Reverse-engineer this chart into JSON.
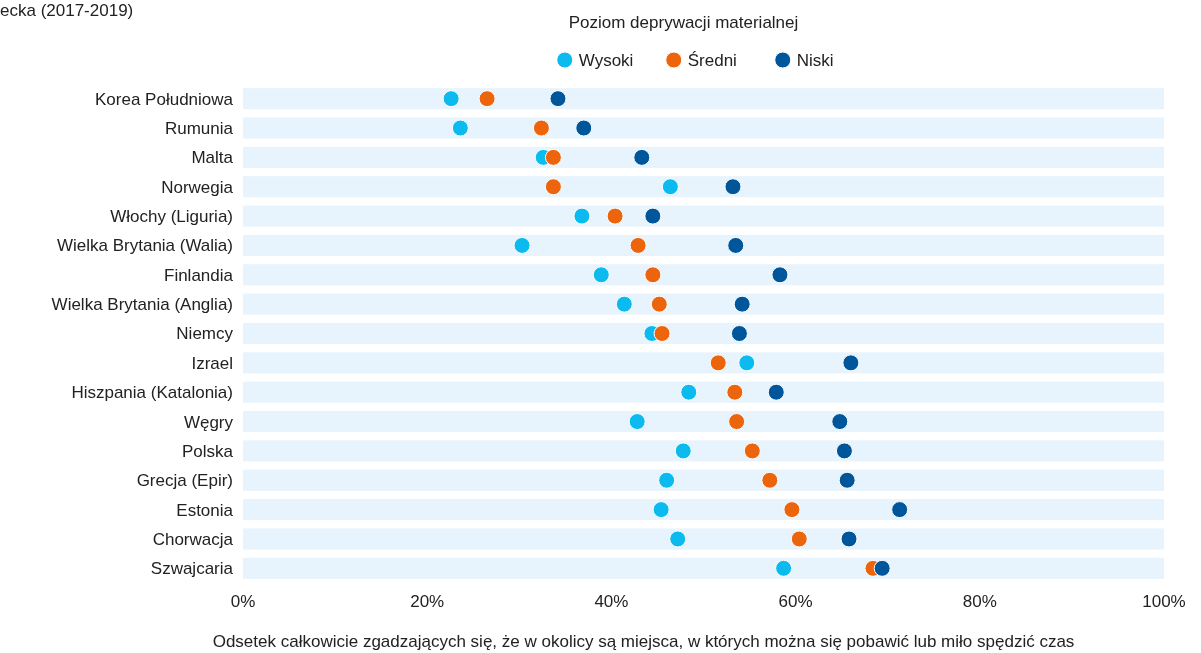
{
  "chart_data": {
    "type": "scatter",
    "orientation": "horizontal",
    "title": "ecka (2017-2019)",
    "legend_title": "Poziom deprywacji materialnej",
    "xlabel": "Odsetek całkowicie zgadzających się, że w okolicy są miejsca, w których można się pobawić lub miło spędzić czas",
    "categories": [
      "Korea Południowa",
      "Rumunia",
      "Malta",
      "Norwegia",
      "Włochy (Liguria)",
      "Wielka Brytania (Walia)",
      "Finlandia",
      "Wielka Brytania (Anglia)",
      "Niemcy",
      "Izrael",
      "Hiszpania (Katalonia)",
      "Węgry",
      "Polska",
      "Grecja (Epir)",
      "Estonia",
      "Chorwacja",
      "Szwajcaria"
    ],
    "series": [
      {
        "type": "bar",
        "color": "#e8f4fd",
        "values": [
          100,
          100,
          100,
          100,
          100,
          100,
          100,
          100,
          100,
          100,
          100,
          100,
          100,
          100,
          100,
          100,
          100
        ]
      },
      {
        "name": "Wysoki",
        "color": "#0bbbef",
        "values": [
          22.6,
          23.6,
          32.6,
          46.4,
          36.8,
          30.3,
          38.9,
          41.4,
          44.4,
          54.7,
          48.4,
          42.8,
          47.8,
          46.0,
          45.4,
          47.2,
          58.7
        ]
      },
      {
        "name": "Średni",
        "color": "#ec640c",
        "values": [
          26.5,
          32.4,
          33.7,
          33.7,
          40.4,
          42.9,
          44.5,
          45.2,
          45.5,
          51.6,
          53.4,
          53.6,
          55.3,
          57.2,
          59.6,
          60.4,
          68.4
        ]
      },
      {
        "name": "Niski",
        "color": "#00569a",
        "values": [
          34.2,
          37.0,
          43.3,
          53.2,
          44.5,
          53.5,
          58.3,
          54.2,
          53.9,
          66.0,
          57.9,
          64.8,
          65.3,
          65.6,
          71.3,
          65.8,
          69.4
        ]
      }
    ],
    "xlim": [
      0,
      100
    ],
    "xticks": [
      {
        "value": 0,
        "label": "0%"
      },
      {
        "value": 20,
        "label": "20%"
      },
      {
        "value": 40,
        "label": "40%"
      },
      {
        "value": 60,
        "label": "60%"
      },
      {
        "value": 80,
        "label": "80%"
      },
      {
        "value": 100,
        "label": "100%"
      }
    ],
    "legend": "top",
    "marker": "circle",
    "grid": false
  }
}
